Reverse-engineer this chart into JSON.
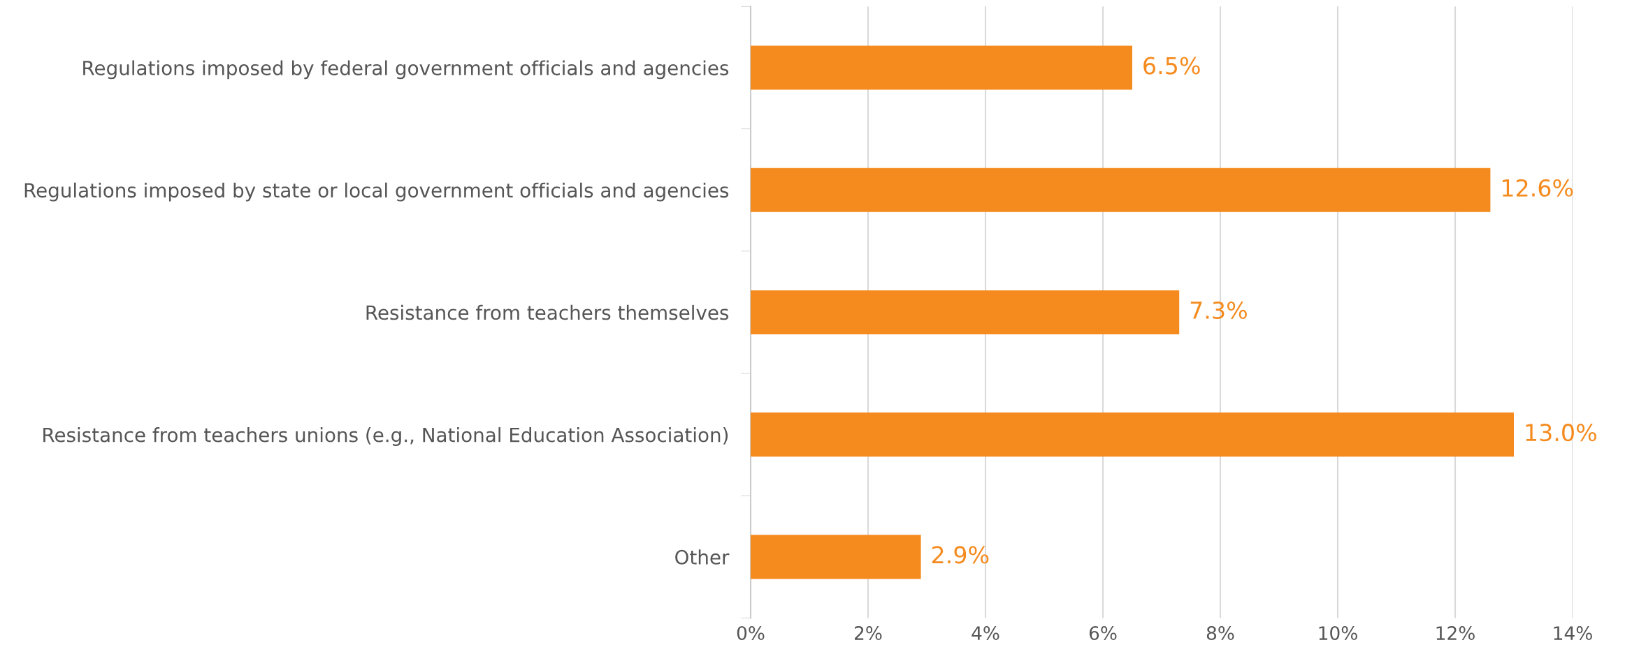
{
  "chart_data": {
    "type": "bar",
    "orientation": "horizontal",
    "categories": [
      "Regulations imposed by federal government officials and agencies",
      "Regulations imposed by state or local government officials and agencies",
      "Resistance from teachers themselves",
      "Resistance from teachers unions (e.g., National Education Association)",
      "Other"
    ],
    "values": [
      6.5,
      12.6,
      7.3,
      13.0,
      2.9
    ],
    "value_labels": [
      "6.5%",
      "12.6%",
      "7.3%",
      "13.0%",
      "2.9%"
    ],
    "color": "#f58b1f",
    "xlim": [
      0,
      14
    ],
    "xticks": [
      {
        "value": 0,
        "label": "0%"
      },
      {
        "value": 2,
        "label": "2%"
      },
      {
        "value": 4,
        "label": "4%"
      },
      {
        "value": 6,
        "label": "6%"
      },
      {
        "value": 8,
        "label": "8%"
      },
      {
        "value": 10,
        "label": "10%"
      },
      {
        "value": 12,
        "label": "12%"
      },
      {
        "value": 14,
        "label": "14%"
      }
    ],
    "grid": "x"
  }
}
